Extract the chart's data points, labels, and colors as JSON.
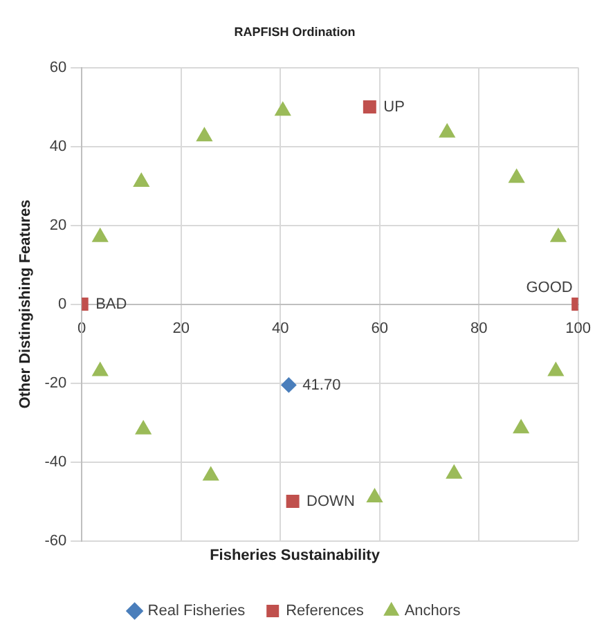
{
  "chart_data": {
    "type": "scatter",
    "title": "RAPFISH Ordination",
    "xlabel": "Fisheries Sustainability",
    "ylabel": "Other Distingishing Features",
    "xlim": [
      0,
      100
    ],
    "xticks": [
      0,
      20,
      40,
      60,
      80,
      100
    ],
    "ylim": [
      -60,
      60
    ],
    "yticks": [
      -60,
      -40,
      -20,
      0,
      20,
      40,
      60
    ],
    "grid": true,
    "legend": "bottom",
    "series": [
      {
        "name": "Real Fisheries",
        "color": "#4a7ebb",
        "marker": "diamond",
        "x": [
          41.7
        ],
        "values": [
          -20.5
        ]
      },
      {
        "name": "References",
        "color": "#c0504d",
        "marker": "square",
        "x": [
          0,
          58,
          42.5,
          100
        ],
        "values": [
          0,
          50,
          -50,
          0
        ]
      },
      {
        "name": "Anchors",
        "color": "#9bbb59",
        "marker": "triangle",
        "x": [
          3.7,
          12,
          24.7,
          40.5,
          73.6,
          87.6,
          96,
          3.7,
          12.4,
          26,
          59,
          75,
          88.5,
          95.5
        ],
        "values": [
          17,
          31,
          42.5,
          49,
          43.5,
          32,
          17,
          -17,
          -31.8,
          -43.5,
          -49,
          -43,
          -31.5,
          -17
        ]
      }
    ],
    "annotations": [
      {
        "text": "41.70",
        "x": 41.7,
        "y": -20.5
      },
      {
        "text": "BAD",
        "x": 0,
        "y": 0
      },
      {
        "text": "UP",
        "x": 58,
        "y": 50
      },
      {
        "text": "DOWN",
        "x": 42.5,
        "y": -50
      },
      {
        "text": "GOOD",
        "x": 100,
        "y": 0
      }
    ]
  }
}
